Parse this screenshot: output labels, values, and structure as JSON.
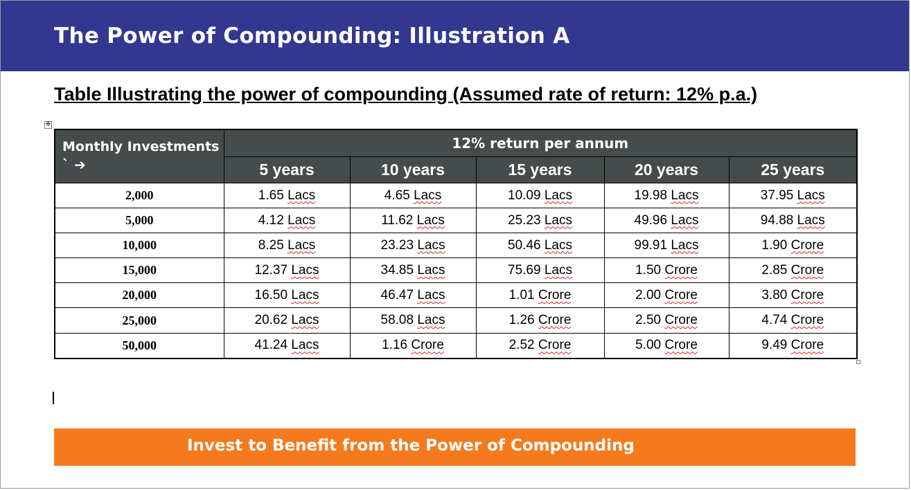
{
  "header": {
    "title": "The Power of Compounding: Illustration A"
  },
  "subtitle": "Table Illustrating the power of compounding (Assumed rate of return: 12% p.a.)",
  "table": {
    "corner_label": "Monthly Investments",
    "corner_arrow": "` ➔",
    "span_label": "12% return per annum",
    "years": [
      "5 years",
      "10 years",
      "15 years",
      "20 years",
      "25 years"
    ],
    "rows": [
      {
        "amount": "2,000",
        "values": [
          [
            "1.65",
            "Lacs"
          ],
          [
            "4.65",
            "Lacs"
          ],
          [
            "10.09",
            "Lacs"
          ],
          [
            "19.98",
            "Lacs"
          ],
          [
            "37.95",
            "Lacs"
          ]
        ]
      },
      {
        "amount": "5,000",
        "values": [
          [
            "4.12",
            "Lacs"
          ],
          [
            "11.62",
            "Lacs"
          ],
          [
            "25.23",
            "Lacs"
          ],
          [
            "49.96",
            "Lacs"
          ],
          [
            "94.88",
            "Lacs"
          ]
        ]
      },
      {
        "amount": "10,000",
        "values": [
          [
            "8.25",
            "Lacs"
          ],
          [
            "23.23",
            "Lacs"
          ],
          [
            "50.46",
            "Lacs"
          ],
          [
            "99.91",
            "Lacs"
          ],
          [
            "1.90",
            "Crore"
          ]
        ]
      },
      {
        "amount": "15,000",
        "values": [
          [
            "12.37",
            "Lacs"
          ],
          [
            "34.85",
            "Lacs"
          ],
          [
            "75.69",
            "Lacs"
          ],
          [
            "1.50",
            "Crore"
          ],
          [
            "2.85",
            "Crore"
          ]
        ]
      },
      {
        "amount": "20,000",
        "values": [
          [
            "16.50",
            "Lacs"
          ],
          [
            "46.47",
            "Lacs"
          ],
          [
            "1.01",
            "Crore"
          ],
          [
            "2.00",
            "Crore"
          ],
          [
            "3.80",
            "Crore"
          ]
        ]
      },
      {
        "amount": "25,000",
        "values": [
          [
            "20.62",
            "Lacs"
          ],
          [
            "58.08",
            "Lacs"
          ],
          [
            "1.26",
            "Crore"
          ],
          [
            "2.50",
            "Crore"
          ],
          [
            "4.74",
            "Crore"
          ]
        ]
      },
      {
        "amount": "50,000",
        "values": [
          [
            "41.24",
            "Lacs"
          ],
          [
            "1.16",
            "Crore"
          ],
          [
            "2.52",
            "Crore"
          ],
          [
            "5.00",
            "Crore"
          ],
          [
            "9.49",
            "Crore"
          ]
        ]
      }
    ]
  },
  "banner": {
    "text": "Invest to Benefit from the Power of Compounding"
  },
  "colors": {
    "header_bg": "#32378f",
    "table_header_bg": "#464c4c",
    "banner_bg": "#f57a1e"
  }
}
